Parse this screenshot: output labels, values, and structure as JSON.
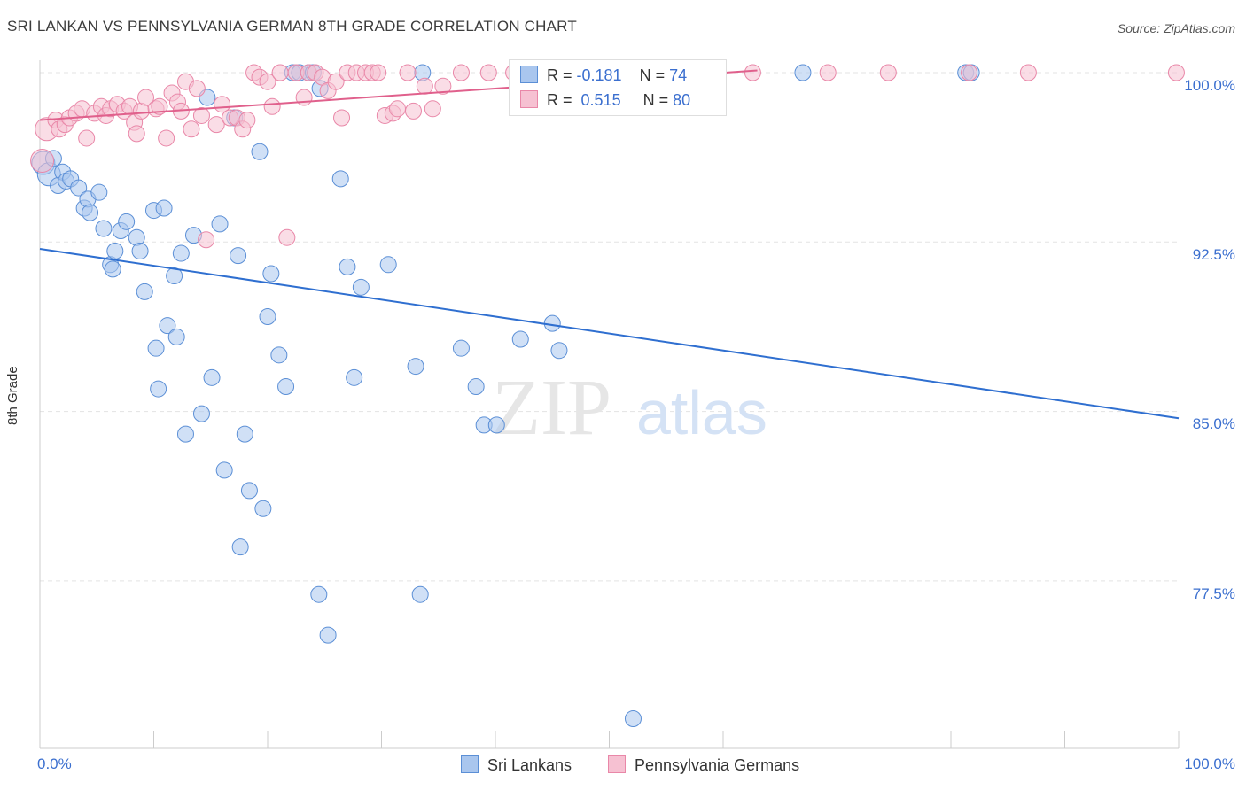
{
  "title": "SRI LANKAN VS PENNSYLVANIA GERMAN 8TH GRADE CORRELATION CHART",
  "source": "Source: ZipAtlas.com",
  "watermark": {
    "zip": "ZIP",
    "atlas": "atlas"
  },
  "legend": {
    "r_label": "R =",
    "n_label": "N =",
    "rows": [
      {
        "r": "-0.181",
        "n": "74"
      },
      {
        "r": "0.515",
        "n": "80"
      }
    ]
  },
  "bottom_legend": [
    "Sri Lankans",
    "Pennsylvania Germans"
  ],
  "colors": {
    "blue_fill": "#a9c6ee",
    "blue_stroke": "#5b8fd6",
    "blue_line": "#2f6fd0",
    "pink_fill": "#f6c1d2",
    "pink_stroke": "#e987a8",
    "pink_line": "#e0608c",
    "tick_text": "#3b6fcf",
    "grid": "#e3e3e3"
  },
  "chart_data": {
    "type": "scatter",
    "title": "SRI LANKAN VS PENNSYLVANIA GERMAN 8TH GRADE CORRELATION CHART",
    "xlabel": "",
    "ylabel": "8th Grade",
    "xlim": [
      0,
      100
    ],
    "ylim": [
      71.5,
      101.5
    ],
    "x_tick_labels": [
      "0.0%",
      "100.0%"
    ],
    "y_ticks": [
      100.0,
      92.5,
      85.0,
      77.5
    ],
    "y_tick_labels": [
      "100.0%",
      "92.5%",
      "85.0%",
      "77.5%"
    ],
    "grid": "horizontal dashed",
    "legend_placement": "top-center",
    "series": [
      {
        "name": "Sri Lankans",
        "r": -0.181,
        "n": 74,
        "trend": {
          "x": [
            0,
            100
          ],
          "y": [
            92.2,
            84.7
          ]
        },
        "points": [
          [
            0.3,
            96.0
          ],
          [
            0.8,
            95.5
          ],
          [
            1.2,
            96.2
          ],
          [
            1.6,
            95.0
          ],
          [
            2.0,
            95.6
          ],
          [
            2.3,
            95.2
          ],
          [
            2.7,
            95.3
          ],
          [
            3.4,
            94.9
          ],
          [
            3.9,
            94.0
          ],
          [
            4.2,
            94.4
          ],
          [
            4.4,
            93.8
          ],
          [
            5.2,
            94.7
          ],
          [
            5.6,
            93.1
          ],
          [
            6.2,
            91.5
          ],
          [
            6.4,
            91.3
          ],
          [
            6.6,
            92.1
          ],
          [
            7.1,
            93.0
          ],
          [
            7.6,
            93.4
          ],
          [
            8.5,
            92.7
          ],
          [
            8.8,
            92.1
          ],
          [
            9.2,
            90.3
          ],
          [
            10.0,
            93.9
          ],
          [
            10.2,
            87.8
          ],
          [
            10.4,
            86.0
          ],
          [
            10.9,
            94.0
          ],
          [
            11.2,
            88.8
          ],
          [
            11.8,
            91.0
          ],
          [
            12.0,
            88.3
          ],
          [
            12.4,
            92.0
          ],
          [
            12.8,
            84.0
          ],
          [
            13.5,
            92.8
          ],
          [
            14.2,
            84.9
          ],
          [
            14.7,
            98.9
          ],
          [
            15.1,
            86.5
          ],
          [
            15.8,
            93.3
          ],
          [
            16.2,
            82.4
          ],
          [
            17.1,
            98.0
          ],
          [
            17.4,
            91.9
          ],
          [
            17.6,
            79.0
          ],
          [
            18.0,
            84.0
          ],
          [
            18.4,
            81.5
          ],
          [
            19.3,
            96.5
          ],
          [
            19.6,
            80.7
          ],
          [
            20.0,
            89.2
          ],
          [
            20.3,
            91.1
          ],
          [
            21.0,
            87.5
          ],
          [
            21.6,
            86.1
          ],
          [
            22.2,
            100.0
          ],
          [
            22.8,
            100.0
          ],
          [
            23.6,
            100.0
          ],
          [
            24.0,
            100.0
          ],
          [
            24.6,
            99.3
          ],
          [
            24.5,
            76.9
          ],
          [
            25.3,
            75.1
          ],
          [
            26.4,
            95.3
          ],
          [
            27.0,
            91.4
          ],
          [
            27.6,
            86.5
          ],
          [
            28.2,
            90.5
          ],
          [
            30.6,
            91.5
          ],
          [
            33.0,
            87.0
          ],
          [
            33.4,
            76.9
          ],
          [
            33.6,
            100.0
          ],
          [
            37.0,
            87.8
          ],
          [
            38.3,
            86.1
          ],
          [
            39.0,
            84.4
          ],
          [
            40.1,
            84.4
          ],
          [
            42.2,
            88.2
          ],
          [
            45.0,
            100.0
          ],
          [
            45.0,
            88.9
          ],
          [
            45.6,
            87.7
          ],
          [
            52.1,
            71.4
          ],
          [
            67.0,
            100.0
          ],
          [
            81.3,
            100.0
          ],
          [
            81.8,
            100.0
          ]
        ]
      },
      {
        "name": "Pennsylvania Germans",
        "r": 0.515,
        "n": 80,
        "trend": {
          "x": [
            0,
            63
          ],
          "y": [
            97.9,
            100.1
          ]
        },
        "points": [
          [
            0.2,
            96.1
          ],
          [
            0.6,
            97.5
          ],
          [
            1.4,
            97.9
          ],
          [
            1.7,
            97.5
          ],
          [
            2.2,
            97.7
          ],
          [
            2.6,
            98.0
          ],
          [
            3.2,
            98.2
          ],
          [
            3.7,
            98.4
          ],
          [
            4.1,
            97.1
          ],
          [
            4.8,
            98.2
          ],
          [
            5.4,
            98.5
          ],
          [
            5.8,
            98.1
          ],
          [
            6.2,
            98.4
          ],
          [
            6.8,
            98.6
          ],
          [
            7.4,
            98.3
          ],
          [
            7.9,
            98.5
          ],
          [
            8.3,
            97.8
          ],
          [
            8.5,
            97.3
          ],
          [
            8.9,
            98.3
          ],
          [
            9.3,
            98.9
          ],
          [
            10.2,
            98.4
          ],
          [
            10.5,
            98.5
          ],
          [
            11.1,
            97.1
          ],
          [
            11.6,
            99.1
          ],
          [
            12.1,
            98.7
          ],
          [
            12.4,
            98.3
          ],
          [
            12.8,
            99.6
          ],
          [
            13.3,
            97.5
          ],
          [
            13.8,
            99.3
          ],
          [
            14.2,
            98.1
          ],
          [
            14.6,
            92.6
          ],
          [
            15.5,
            97.7
          ],
          [
            16.0,
            98.6
          ],
          [
            16.7,
            98.0
          ],
          [
            17.3,
            98.0
          ],
          [
            17.8,
            97.5
          ],
          [
            18.2,
            97.9
          ],
          [
            18.8,
            100.0
          ],
          [
            19.3,
            99.8
          ],
          [
            20.0,
            99.6
          ],
          [
            20.4,
            98.5
          ],
          [
            21.1,
            100.0
          ],
          [
            21.7,
            92.7
          ],
          [
            22.5,
            100.0
          ],
          [
            23.2,
            98.9
          ],
          [
            23.6,
            100.0
          ],
          [
            24.2,
            100.0
          ],
          [
            24.8,
            99.8
          ],
          [
            25.3,
            99.2
          ],
          [
            26.0,
            99.6
          ],
          [
            26.5,
            98.0
          ],
          [
            27.0,
            100.0
          ],
          [
            27.8,
            100.0
          ],
          [
            28.6,
            100.0
          ],
          [
            29.2,
            100.0
          ],
          [
            29.7,
            100.0
          ],
          [
            30.3,
            98.1
          ],
          [
            31.0,
            98.2
          ],
          [
            31.4,
            98.4
          ],
          [
            32.3,
            100.0
          ],
          [
            32.8,
            98.3
          ],
          [
            33.8,
            99.4
          ],
          [
            34.5,
            98.4
          ],
          [
            35.4,
            99.4
          ],
          [
            37.0,
            100.0
          ],
          [
            39.4,
            100.0
          ],
          [
            41.6,
            100.0
          ],
          [
            43.8,
            100.0
          ],
          [
            46.0,
            100.0
          ],
          [
            48.6,
            100.0
          ],
          [
            51.0,
            100.0
          ],
          [
            53.8,
            100.0
          ],
          [
            56.0,
            100.0
          ],
          [
            58.8,
            100.0
          ],
          [
            62.6,
            100.0
          ],
          [
            69.2,
            100.0
          ],
          [
            74.5,
            100.0
          ],
          [
            81.6,
            100.0
          ],
          [
            86.8,
            100.0
          ],
          [
            99.8,
            100.0
          ]
        ]
      }
    ]
  }
}
